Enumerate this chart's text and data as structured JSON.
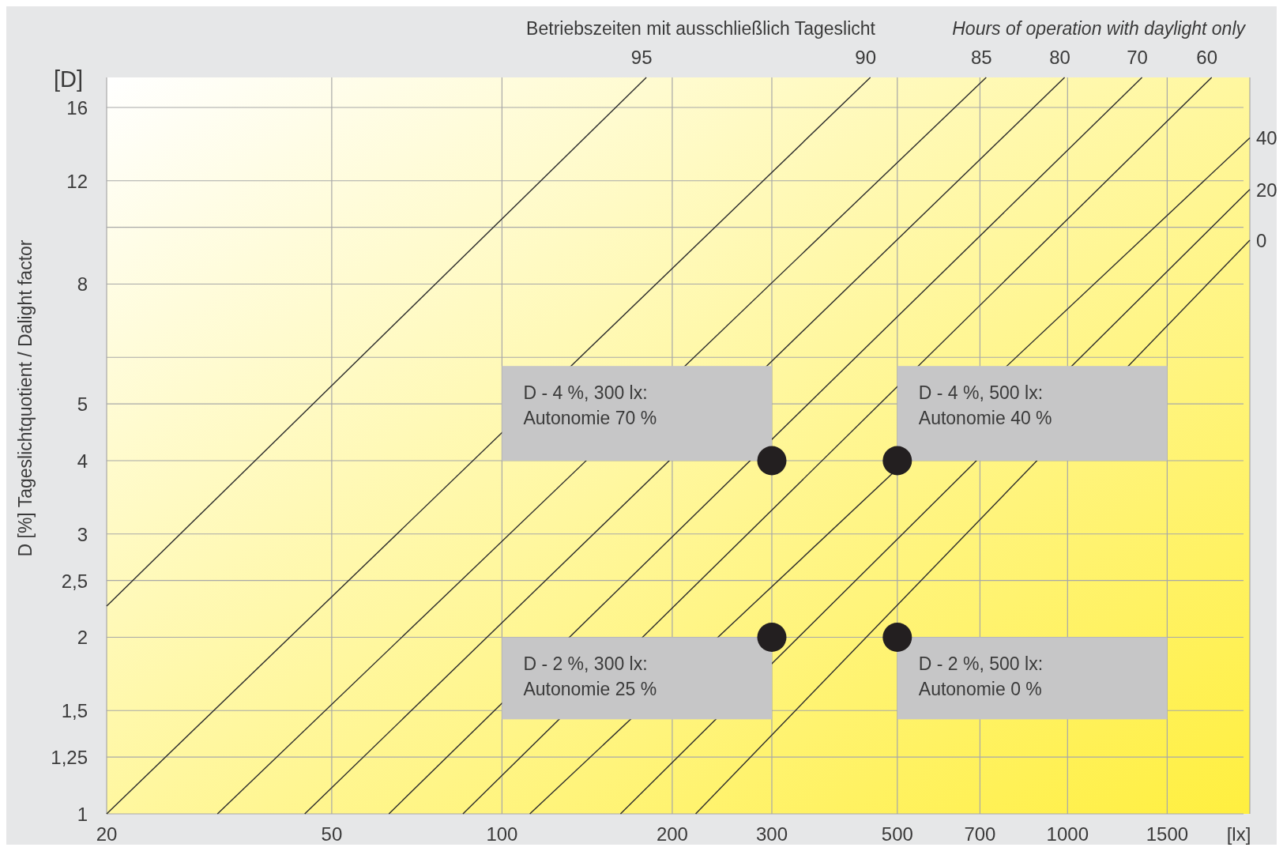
{
  "chart_data": {
    "type": "line",
    "x2label": "Betriebszeiten mit ausschließlich Tageslicht",
    "ylabel": "D [%] Tageslichtquotient / Dalight factor",
    "xlabel": "[lx]",
    "log": "xy",
    "grid": true,
    "xlim": [
      20,
      2100
    ],
    "xticks": [
      20,
      50,
      100,
      200,
      300,
      500,
      700,
      1000,
      1500
    ],
    "ylim": [
      1,
      18
    ],
    "yticks": [
      1,
      {
        "value": 1.25,
        "label": "1,25"
      },
      {
        "value": 1.5,
        "label": "1,5"
      },
      2,
      {
        "value": 2.5,
        "label": "2,5"
      },
      3,
      4,
      5,
      {
        "value": 6,
        "label": null
      },
      8,
      {
        "value": 10,
        "label": null
      },
      12,
      16
    ],
    "series": [
      {
        "name": "95",
        "color": "#2b2b2b",
        "x": [
          20,
          180
        ],
        "values": [
          2.26,
          18
        ]
      },
      {
        "name": "90",
        "color": "#2b2b2b",
        "x": [
          20,
          448
        ],
        "values": [
          1,
          18
        ]
      },
      {
        "name": "85",
        "color": "#2b2b2b",
        "x": [
          31.4,
          718
        ],
        "values": [
          1,
          18
        ]
      },
      {
        "name": "80",
        "color": "#2b2b2b",
        "x": [
          44.8,
          988
        ],
        "values": [
          1,
          18
        ]
      },
      {
        "name": "70",
        "color": "#2b2b2b",
        "x": [
          63.1,
          1354
        ],
        "values": [
          1,
          18
        ]
      },
      {
        "name": "60",
        "color": "#2b2b2b",
        "x": [
          85.3,
          1798
        ],
        "values": [
          1,
          18
        ]
      },
      {
        "name": "40",
        "color": "#2b2b2b",
        "x": [
          112,
          2100
        ],
        "values": [
          1,
          14.2
        ]
      },
      {
        "name": "20",
        "color": "#2b2b2b",
        "x": [
          162,
          2100
        ],
        "values": [
          1,
          11.6
        ]
      },
      {
        "name": "0",
        "color": "#2b2b2b",
        "x": [
          220,
          2100
        ],
        "values": [
          1,
          9.5
        ]
      },
      {
        "type": "scatter",
        "color": "#231f20",
        "marker": "circle",
        "x": [
          300,
          500,
          300,
          500
        ],
        "values": [
          4,
          4,
          2,
          2
        ]
      }
    ],
    "annotations": [
      "[D]",
      "Hours of operation with daylight only",
      "D - 4 %, 300 lx:\nAutonomie 70 %",
      "D - 4 %, 500 lx:\nAutonomie 40 %",
      "D - 2 %, 300 lx:\nAutonomie 25 %",
      "D - 2 %, 500 lx:\nAutonomie 0 %"
    ]
  }
}
